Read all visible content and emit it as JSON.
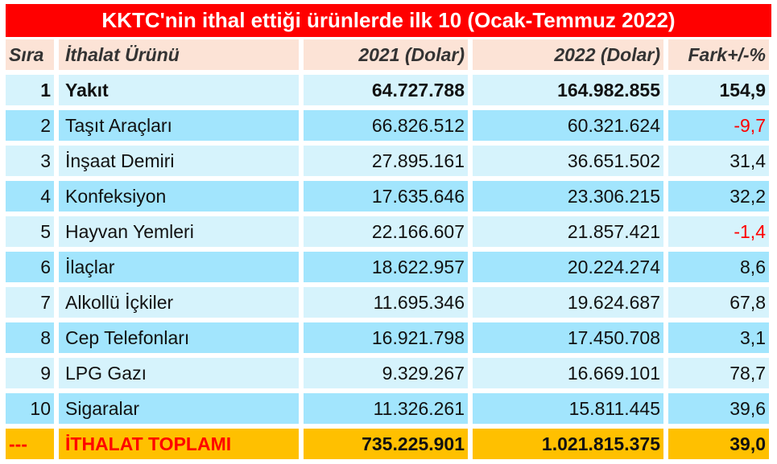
{
  "title": "KKTC'nin ithal ettiği ürünlerde ilk 10 (Ocak-Temmuz 2022)",
  "headers": [
    "Sıra",
    "İthalat Ürünü",
    "2021 (Dolar)",
    "2022 (Dolar)",
    "Fark+/-%"
  ],
  "rows": [
    [
      "1",
      "Yakıt",
      "64.727.788",
      "164.982.855",
      "154,9"
    ],
    [
      "2",
      "Taşıt Araçları",
      "66.826.512",
      "60.321.624",
      "-9,7"
    ],
    [
      "3",
      "İnşaat Demiri",
      "27.895.161",
      "36.651.502",
      "31,4"
    ],
    [
      "4",
      "Konfeksiyon",
      "17.635.646",
      "23.306.215",
      "32,2"
    ],
    [
      "5",
      "Hayvan Yemleri",
      "22.166.607",
      "21.857.421",
      "-1,4"
    ],
    [
      "6",
      "İlaçlar",
      "18.622.957",
      "20.224.274",
      "8,6"
    ],
    [
      "7",
      "Alkollü İçkiler",
      "11.695.346",
      "19.624.687",
      "67,8"
    ],
    [
      "8",
      "Cep Telefonları",
      "16.921.798",
      "17.450.708",
      "3,1"
    ],
    [
      "9",
      "LPG Gazı",
      "9.329.267",
      "16.669.101",
      "78,7"
    ],
    [
      "10",
      "Sigaralar",
      "11.326.261",
      "15.811.445",
      "39,6"
    ]
  ],
  "total": [
    "---",
    "İTHALAT TOPLAMI",
    "735.225.901",
    "1.021.815.375",
    "39,0"
  ],
  "colors": {
    "title": "#ff0000",
    "header": "#fce3d6",
    "row_light": "#d6f3fc",
    "row_dark": "#a2e5fd",
    "total": "#ffc000",
    "negative": "#ff0000"
  }
}
